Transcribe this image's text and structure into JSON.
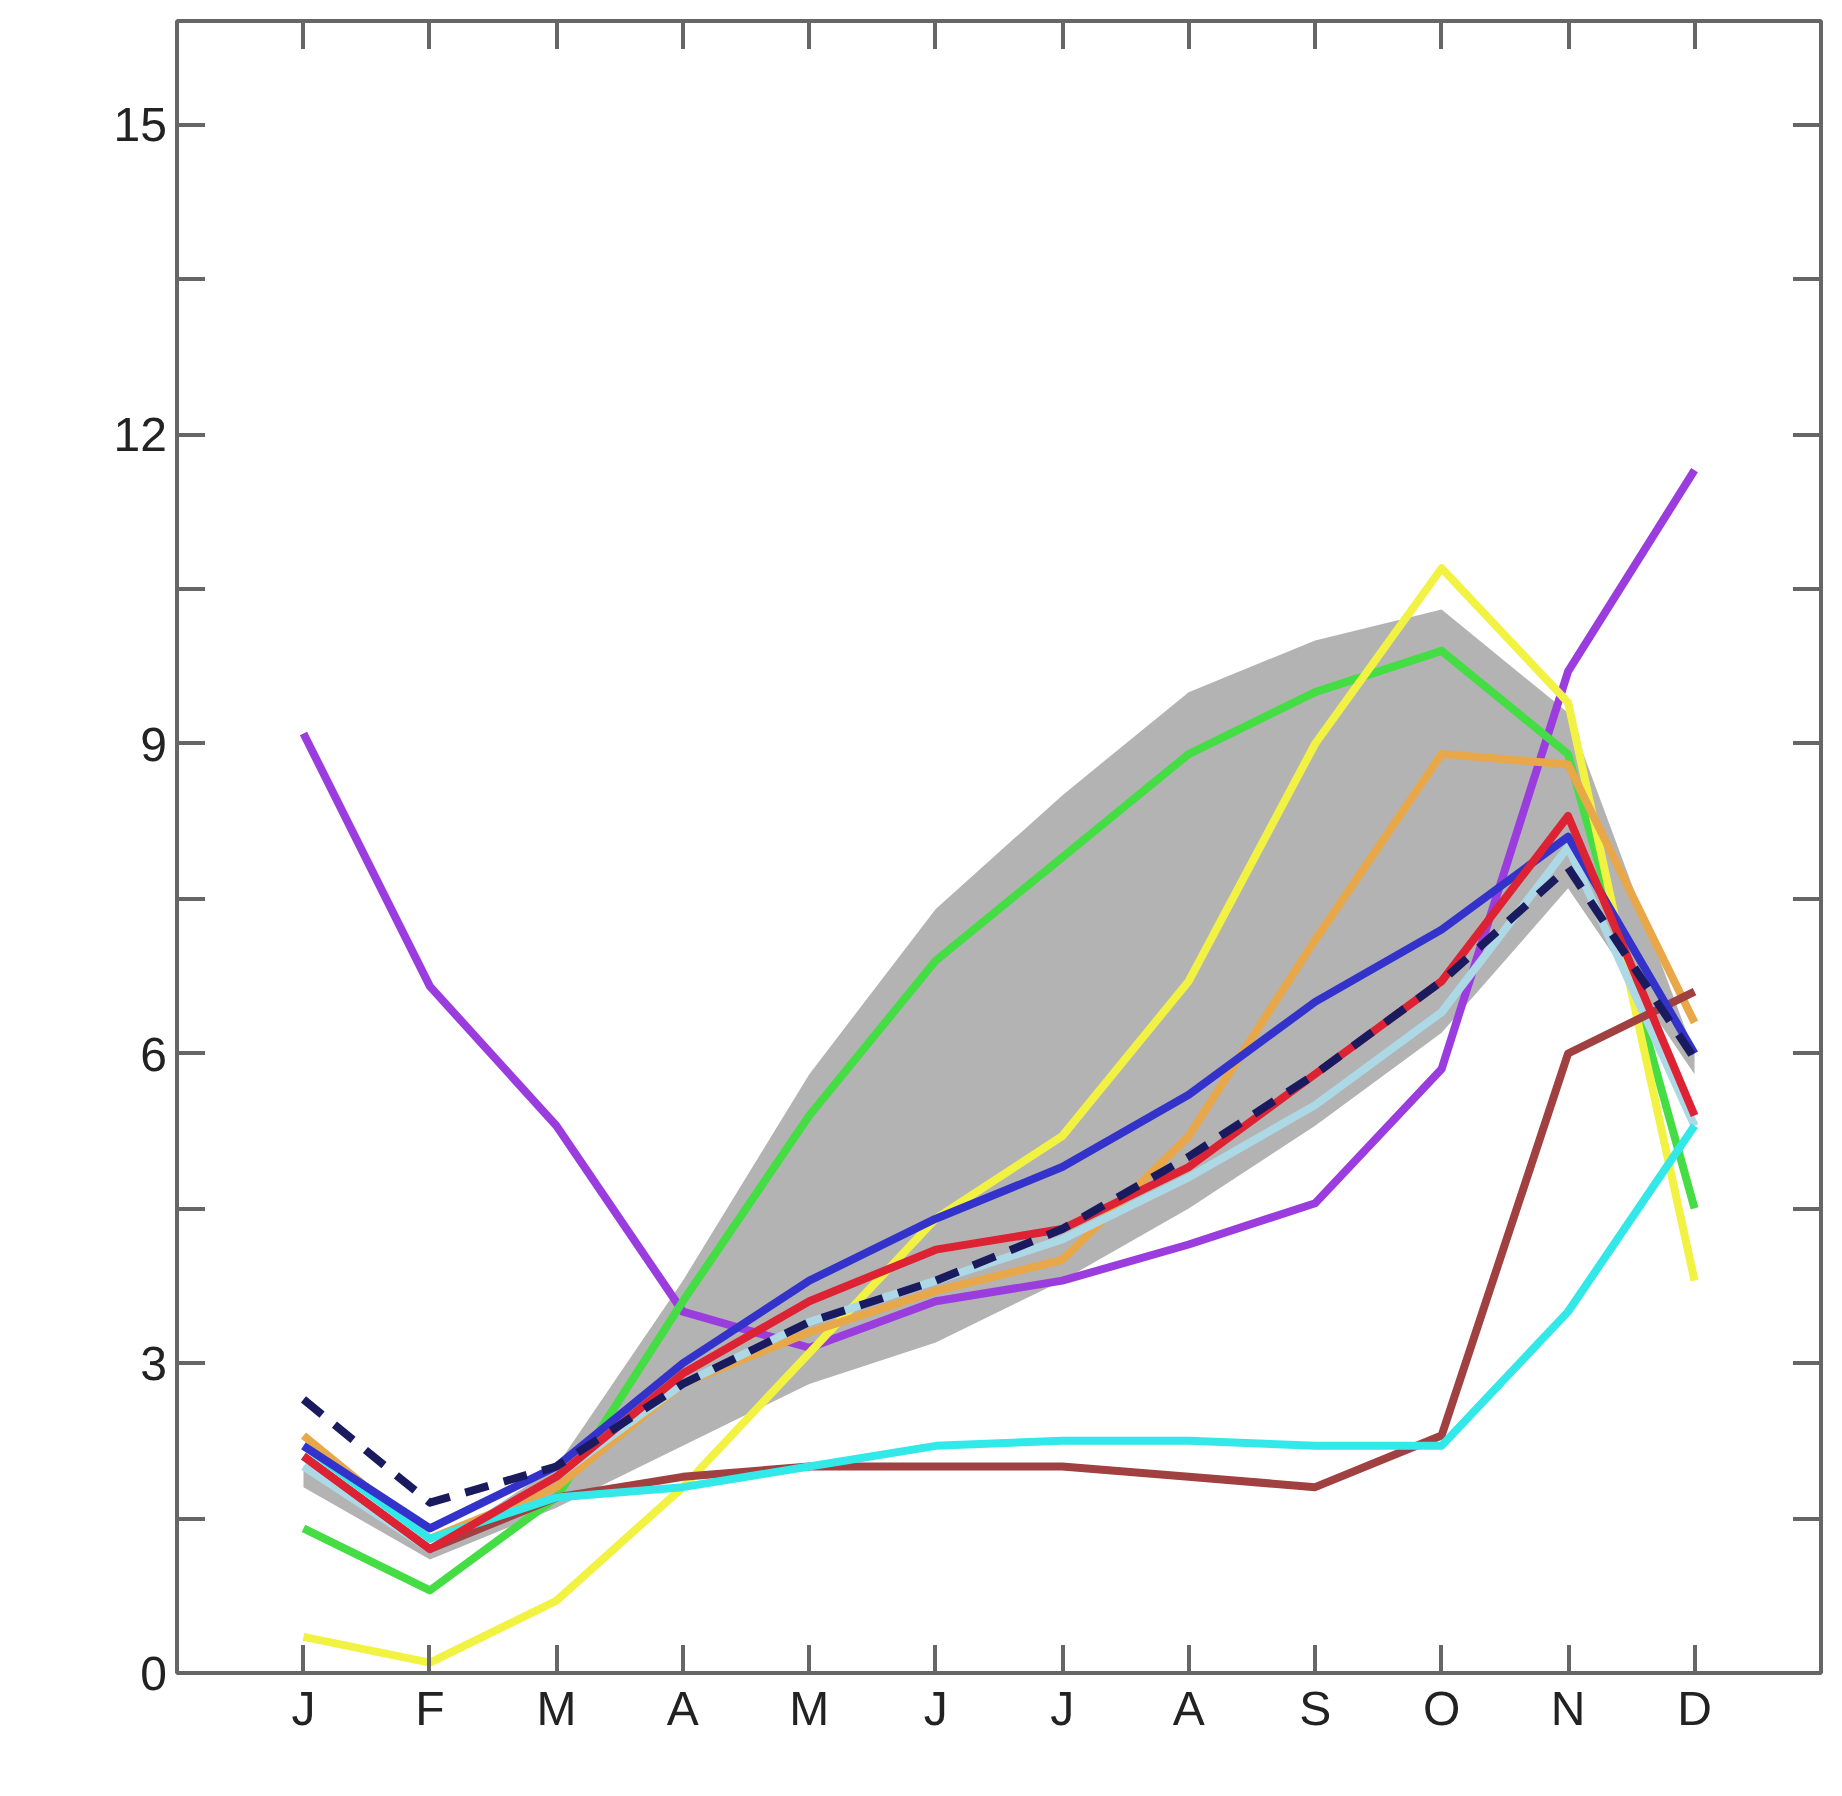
{
  "chart_data": {
    "type": "line",
    "categories": [
      "J",
      "F",
      "M",
      "A",
      "M",
      "J",
      "J",
      "A",
      "S",
      "O",
      "N",
      "D"
    ],
    "ylim": [
      0,
      16
    ],
    "yticks": [
      0,
      {
        "value": 1.5,
        "label": null
      },
      3,
      {
        "value": 4.5,
        "label": null
      },
      6,
      {
        "value": 7.5,
        "label": null
      },
      9,
      {
        "value": 10.5,
        "label": null
      },
      12,
      {
        "value": 13.5,
        "label": null
      },
      15
    ],
    "grid": false,
    "series": [
      {
        "color": "#9b3dde",
        "values": [
          9.1,
          6.65,
          5.3,
          3.5,
          3.15,
          3.6,
          3.8,
          4.15,
          4.55,
          5.85,
          9.7,
          11.65
        ]
      },
      {
        "color": "#44dd44",
        "values": [
          1.4,
          0.8,
          1.7,
          3.6,
          5.4,
          6.9,
          7.9,
          8.9,
          9.5,
          9.9,
          8.9,
          4.5
        ]
      },
      {
        "color": "#f2f243",
        "values": [
          0.35,
          0.1,
          0.7,
          1.8,
          3.1,
          4.4,
          5.2,
          6.7,
          9.0,
          10.7,
          9.4,
          3.8
        ]
      },
      {
        "color": "#e8a84a",
        "values": [
          2.3,
          1.3,
          1.8,
          2.8,
          3.3,
          3.7,
          4.0,
          5.2,
          7.1,
          8.9,
          8.8,
          6.3
        ]
      },
      {
        "color": "#add8e6",
        "values": [
          2.0,
          1.2,
          1.9,
          2.8,
          3.4,
          3.8,
          4.2,
          4.8,
          5.5,
          6.4,
          8.0,
          5.3
        ]
      },
      {
        "color": "#a04040",
        "values": [
          2.1,
          1.2,
          1.7,
          1.9,
          2.0,
          2.0,
          2.0,
          1.9,
          1.8,
          2.3,
          6.0,
          6.6
        ]
      },
      {
        "color": "#33e8e8",
        "values": [
          2.2,
          1.3,
          1.7,
          1.8,
          2.0,
          2.2,
          2.25,
          2.25,
          2.2,
          2.2,
          3.5,
          5.3
        ]
      },
      {
        "color": "#3333cc",
        "values": [
          2.2,
          1.4,
          2.0,
          3.0,
          3.8,
          4.4,
          4.9,
          5.6,
          6.5,
          7.2,
          8.1,
          6.0
        ]
      },
      {
        "color": "#dd2233",
        "values": [
          2.1,
          1.2,
          1.9,
          2.9,
          3.6,
          4.1,
          4.3,
          4.9,
          5.8,
          6.7,
          8.3,
          5.4
        ]
      },
      {
        "color": "#1a1a5e",
        "line_style": "dashed",
        "values": [
          2.65,
          1.65,
          2.0,
          2.8,
          3.4,
          3.8,
          4.3,
          5.0,
          5.8,
          6.7,
          7.8,
          5.95
        ],
        "lower": [
          1.8,
          1.1,
          1.6,
          2.2,
          2.8,
          3.2,
          3.8,
          4.5,
          5.3,
          6.2,
          7.6,
          5.8
        ],
        "upper": [
          2.0,
          1.2,
          2.0,
          3.8,
          5.8,
          7.4,
          8.5,
          9.5,
          10.0,
          10.3,
          9.3,
          6.0
        ]
      }
    ]
  }
}
